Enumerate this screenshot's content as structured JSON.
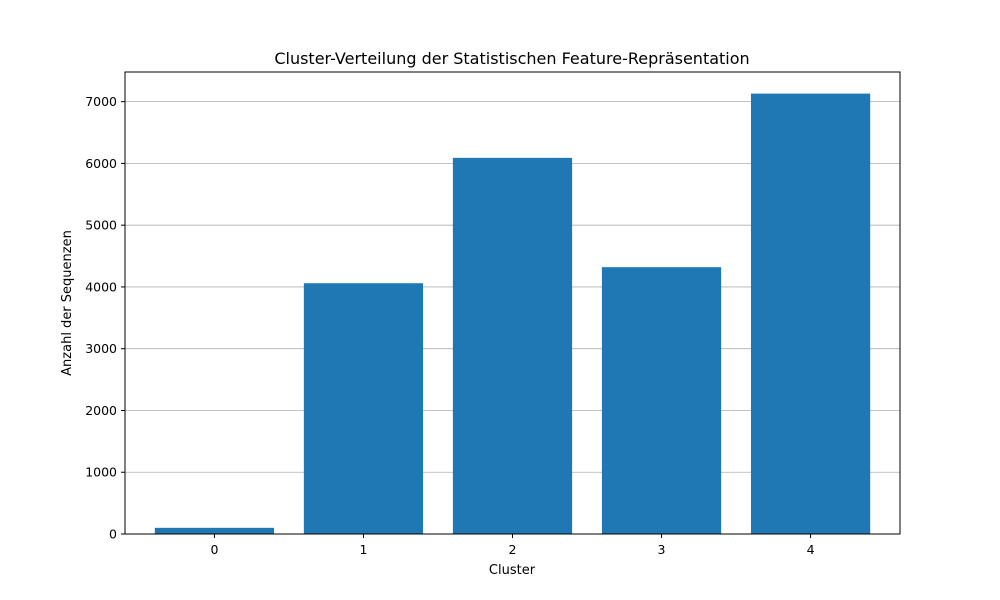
{
  "chart_data": {
    "type": "bar",
    "title": "Cluster-Verteilung der Statistischen Feature-Repräsentation",
    "xlabel": "Cluster",
    "ylabel": "Anzahl der Sequenzen",
    "categories": [
      "0",
      "1",
      "2",
      "3",
      "4"
    ],
    "values": [
      100,
      4060,
      6090,
      4320,
      7130
    ],
    "ylim": [
      0,
      7480
    ],
    "yticks": [
      0,
      1000,
      2000,
      3000,
      4000,
      5000,
      6000,
      7000
    ],
    "grid": "y",
    "bar_color": "#1f77b4"
  }
}
